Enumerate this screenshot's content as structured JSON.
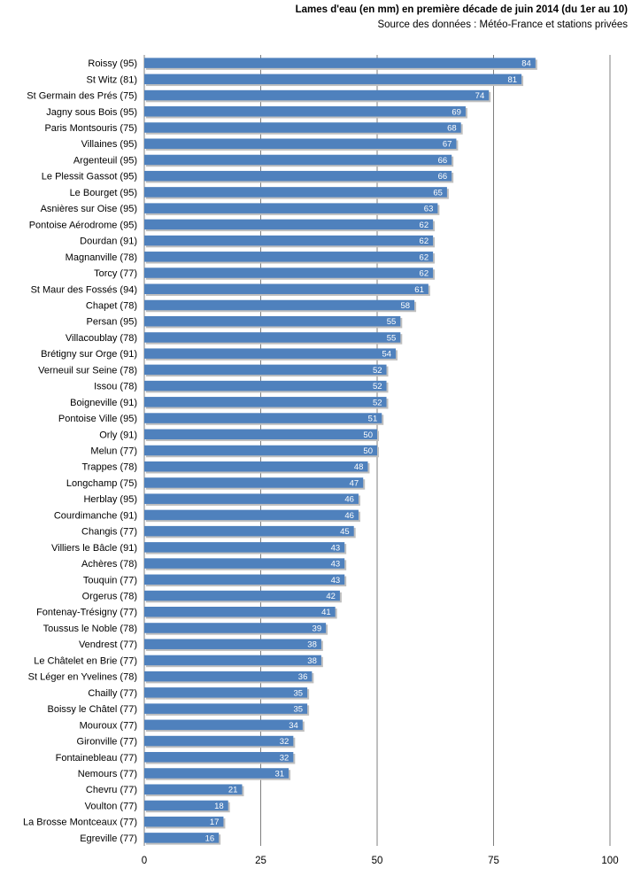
{
  "chart_data": {
    "type": "bar",
    "orientation": "horizontal",
    "title": "Lames d'eau (en mm) en première décade de juin 2014 (du 1er au 10)",
    "subtitle": "Source des données : Météo-France et stations  privées",
    "xlim": [
      0,
      100
    ],
    "xticks": [
      0,
      25,
      50,
      75,
      100
    ],
    "grid": true,
    "bar_color": "#4f81bd",
    "categories": [
      "Roissy (95)",
      "St Witz (81)",
      "St Germain des Prés (75)",
      "Jagny sous Bois (95)",
      "Paris Montsouris (75)",
      "Villaines (95)",
      "Argenteuil (95)",
      "Le Plessit Gassot (95)",
      "Le Bourget (95)",
      "Asnières sur Oise (95)",
      "Pontoise Aérodrome (95)",
      "Dourdan (91)",
      "Magnanville (78)",
      "Torcy (77)",
      "St Maur des Fossés (94)",
      "Chapet (78)",
      "Persan (95)",
      "Villacoublay (78)",
      "Brétigny sur Orge (91)",
      "Verneuil sur Seine (78)",
      "Issou (78)",
      "Boigneville (91)",
      "Pontoise Ville (95)",
      "Orly (91)",
      "Melun (77)",
      "Trappes (78)",
      "Longchamp (75)",
      "Herblay (95)",
      "Courdimanche (91)",
      "Changis (77)",
      "Villiers le Bâcle (91)",
      "Achères (78)",
      "Touquin (77)",
      "Orgerus (78)",
      "Fontenay-Trésigny (77)",
      "Toussus le Noble (78)",
      "Vendrest (77)",
      "Le Châtelet en Brie (77)",
      "St Léger en Yvelines (78)",
      "Chailly (77)",
      "Boissy le Châtel (77)",
      "Mouroux (77)",
      "Gironville (77)",
      "Fontainebleau (77)",
      "Nemours (77)",
      "Chevru (77)",
      "Voulton (77)",
      "La Brosse Montceaux (77)",
      "Egreville (77)"
    ],
    "values": [
      84,
      81,
      74,
      69,
      68,
      67,
      66,
      66,
      65,
      63,
      62,
      62,
      62,
      62,
      61,
      58,
      55,
      55,
      54,
      52,
      52,
      52,
      51,
      50,
      50,
      48,
      47,
      46,
      46,
      45,
      43,
      43,
      43,
      42,
      41,
      39,
      38,
      38,
      36,
      35,
      35,
      34,
      32,
      32,
      31,
      21,
      18,
      17,
      16
    ]
  }
}
